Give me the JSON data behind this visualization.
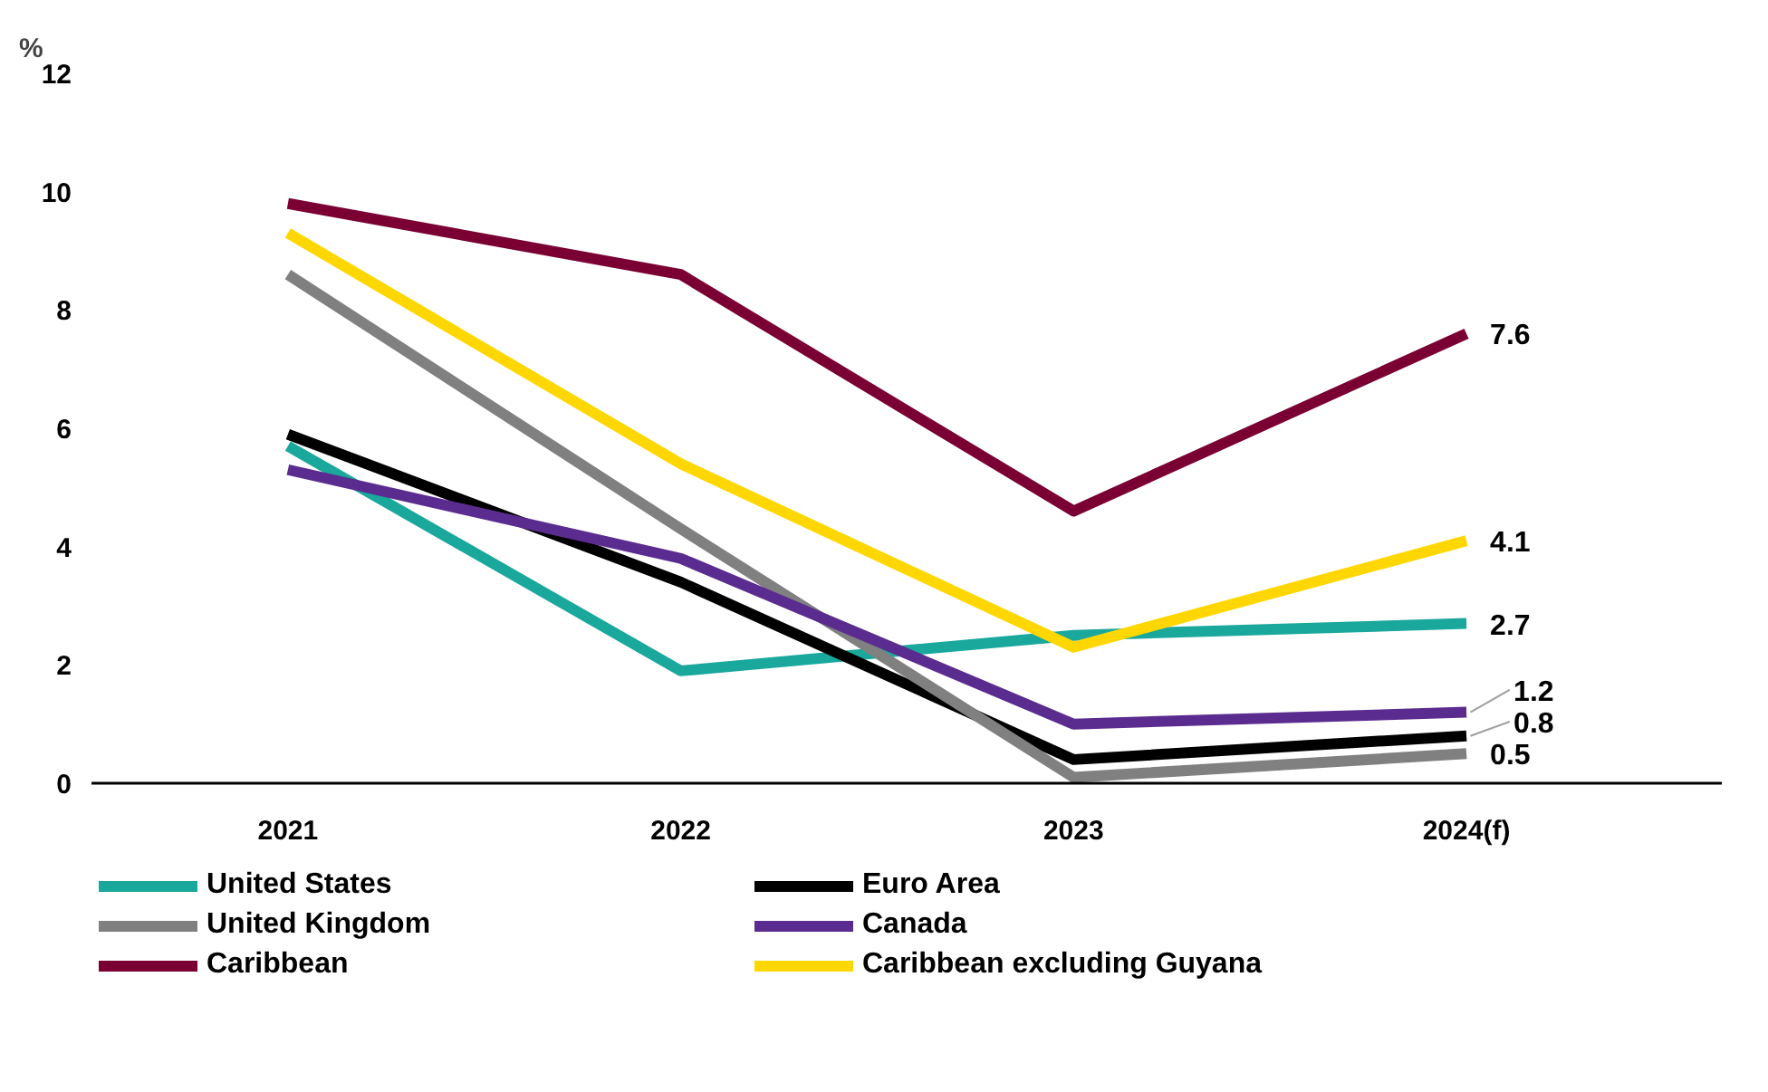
{
  "chart_data": {
    "type": "line",
    "ylabel": "%",
    "categories": [
      "2021",
      "2022",
      "2023",
      "2024(f)"
    ],
    "ylim": [
      0,
      12
    ],
    "yticks": [
      0,
      2,
      4,
      6,
      8,
      10,
      12
    ],
    "grid": false,
    "legend": "bottom",
    "marker": "none",
    "line_style": "solid",
    "series": [
      {
        "name": "United States",
        "color": "#1aa89c",
        "values": [
          5.7,
          1.9,
          2.5,
          2.7
        ],
        "value_labels": [
          null,
          null,
          null,
          "2.7"
        ]
      },
      {
        "name": "Euro Area",
        "color": "#000000",
        "values": [
          5.9,
          3.4,
          0.4,
          0.8
        ],
        "value_labels": [
          null,
          null,
          null,
          "0.8"
        ]
      },
      {
        "name": "United Kingdom",
        "color": "#808080",
        "values": [
          8.6,
          4.3,
          0.1,
          0.5
        ],
        "value_labels": [
          null,
          null,
          null,
          "0.5"
        ]
      },
      {
        "name": "Canada",
        "color": "#5b2c8f",
        "values": [
          5.3,
          3.8,
          1.0,
          1.2
        ],
        "value_labels": [
          null,
          null,
          null,
          "1.2"
        ]
      },
      {
        "name": "Caribbean",
        "color": "#7a0033",
        "values": [
          9.8,
          8.6,
          4.6,
          7.6
        ],
        "value_labels": [
          null,
          null,
          null,
          "7.6"
        ]
      },
      {
        "name": "Caribbean excluding Guyana",
        "color": "#ffd700",
        "values": [
          9.3,
          5.4,
          2.3,
          4.1
        ],
        "value_labels": [
          null,
          null,
          null,
          "4.1"
        ]
      }
    ]
  }
}
